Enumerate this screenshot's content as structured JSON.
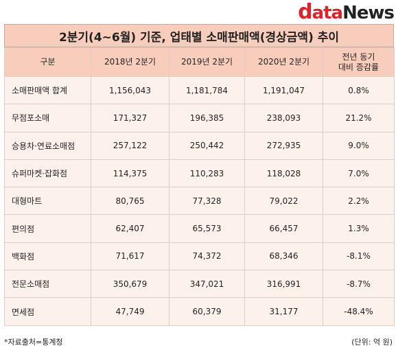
{
  "logo": {
    "first": "d",
    "middle": "ata",
    "last": "News"
  },
  "title": "2분기(4~6월) 기준, 업태별 소매판매액(경상금액) 추이",
  "headers": [
    "구분",
    "2018년 2분기",
    "2019년 2분기",
    "2020년 2분기",
    "전년 동기\n대비 증감률"
  ],
  "header_change_line1": "전년 동기",
  "header_change_line2": "대비 증감률",
  "rows": [
    {
      "category": "소매판매액 합계",
      "y2018": "1,156,043",
      "y2019": "1,181,784",
      "y2020": "1,191,047",
      "change": "0.8%"
    },
    {
      "category": "무점포소매",
      "y2018": "171,327",
      "y2019": "196,385",
      "y2020": "238,093",
      "change": "21.2%"
    },
    {
      "category": "승용차·연료소매점",
      "y2018": "257,122",
      "y2019": "250,442",
      "y2020": "272,935",
      "change": "9.0%"
    },
    {
      "category": "슈퍼마켓·잡화점",
      "y2018": "114,375",
      "y2019": "110,283",
      "y2020": "118,028",
      "change": "7.0%"
    },
    {
      "category": "대형마트",
      "y2018": "80,765",
      "y2019": "77,328",
      "y2020": "79,022",
      "change": "2.2%"
    },
    {
      "category": "편의점",
      "y2018": "62,407",
      "y2019": "65,573",
      "y2020": "66,457",
      "change": "1.3%"
    },
    {
      "category": "백화점",
      "y2018": "71,617",
      "y2019": "74,372",
      "y2020": "68,346",
      "change": "-8.1%"
    },
    {
      "category": "전문소매점",
      "y2018": "350,679",
      "y2019": "347,021",
      "y2020": "316,991",
      "change": "-8.7%"
    },
    {
      "category": "면세점",
      "y2018": "47,749",
      "y2019": "60,379",
      "y2020": "31,177",
      "change": "-48.4%"
    }
  ],
  "source_note": "*자료출처=통계청",
  "unit_note": "(단위: 억 원)",
  "colors": {
    "header_bg": "#f8cdbb",
    "row_bg": "#fdf1ec",
    "brand_red": "#d8262c"
  }
}
